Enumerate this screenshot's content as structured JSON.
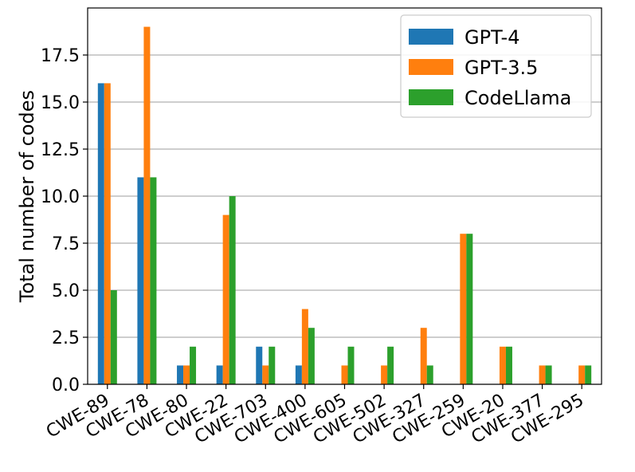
{
  "chart_data": {
    "type": "bar",
    "title": "",
    "xlabel": "",
    "ylabel": "Total number of codes",
    "ylim": [
      0,
      20
    ],
    "yticks": [
      "0.0",
      "2.5",
      "5.0",
      "7.5",
      "10.0",
      "12.5",
      "15.0",
      "17.5"
    ],
    "ytick_values": [
      0,
      2.5,
      5,
      7.5,
      10,
      12.5,
      15,
      17.5
    ],
    "grid": "horizontal",
    "legend_position": "top-right",
    "xtick_rotation": "30 degrees",
    "categories": [
      "CWE-89",
      "CWE-78",
      "CWE-80",
      "CWE-22",
      "CWE-703",
      "CWE-400",
      "CWE-605",
      "CWE-502",
      "CWE-327",
      "CWE-259",
      "CWE-20",
      "CWE-377",
      "CWE-295"
    ],
    "series": [
      {
        "name": "GPT-4",
        "color": "#1f77b4",
        "values": [
          16,
          11,
          1,
          1,
          2,
          1,
          0,
          0,
          0,
          0,
          0,
          0,
          0
        ]
      },
      {
        "name": "GPT-3.5",
        "color": "#ff7f0e",
        "values": [
          16,
          19,
          1,
          9,
          1,
          4,
          1,
          1,
          3,
          8,
          2,
          1,
          1
        ]
      },
      {
        "name": "CodeLlama",
        "color": "#2ca02c",
        "values": [
          5,
          11,
          2,
          10,
          2,
          3,
          2,
          2,
          1,
          8,
          2,
          1,
          1
        ]
      }
    ]
  }
}
